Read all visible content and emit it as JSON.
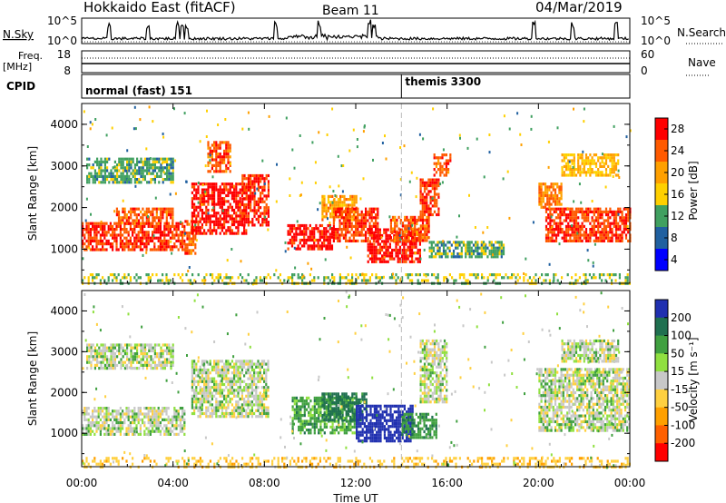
{
  "header": {
    "station": "Hokkaido East (fitACF)",
    "beam": "Beam 11",
    "date": "04/Mar/2019"
  },
  "nsky_panel": {
    "label": "N.Sky",
    "left_ticks": [
      "10^5",
      "10^0"
    ],
    "right_ticks": [
      "10^5",
      "10^0"
    ],
    "right_label": "N.Search"
  },
  "freq_panel": {
    "label": "Freq.",
    "unit": "[MHz]",
    "left_ticks": [
      "18",
      "8"
    ],
    "right_ticks": [
      "60",
      "0"
    ],
    "right_label": "Nave"
  },
  "cpid_panel": {
    "label": "CPID",
    "modes": [
      {
        "name": "normal (fast) 151",
        "start_hour": 0
      },
      {
        "name": "themis 3300",
        "start_hour": 14
      }
    ]
  },
  "axes": {
    "xlabel": "Time UT",
    "x_ticks": [
      "00:00",
      "04:00",
      "08:00",
      "12:00",
      "16:00",
      "20:00",
      "00:00"
    ],
    "x_range_hours": [
      0,
      24
    ],
    "ylabel": "Slant Range [km]",
    "y_ticks": [
      "4000",
      "3000",
      "2000",
      "1000"
    ],
    "y_range_km": [
      180,
      4500
    ]
  },
  "power_colorbar": {
    "label": "Power [dB]",
    "ticks": [
      "28",
      "24",
      "20",
      "16",
      "12",
      "8",
      "4"
    ],
    "colors": [
      "#ff0000",
      "#ff5a00",
      "#ffa000",
      "#ffd000",
      "#40a060",
      "#2060a0",
      "#0000ff"
    ]
  },
  "velocity_colorbar": {
    "label": "Velocity [m s⁻¹]",
    "ticks": [
      "200",
      "100",
      "50",
      "15",
      "-15",
      "-50",
      "-100",
      "-200"
    ],
    "colors": [
      "#2030b0",
      "#207050",
      "#40a040",
      "#90e040",
      "#c8c8c8",
      "#ffd040",
      "#ffa000",
      "#ff6000",
      "#ff0000"
    ]
  },
  "chart_data": {
    "type": "heatmap",
    "title": "Hokkaido East (fitACF)",
    "xlabel": "Time UT",
    "ylabel": "Slant Range [km]",
    "x_range_hours": [
      0,
      24
    ],
    "y_range_km": [
      180,
      4500
    ],
    "power_regions": [
      {
        "t0": 0.0,
        "t1": 4.5,
        "r0": 1000,
        "r1": 1650,
        "dB": 26
      },
      {
        "t0": 4.5,
        "t1": 5.0,
        "r0": 900,
        "r1": 1700,
        "dB": 24
      },
      {
        "t0": 4.8,
        "t1": 7.2,
        "r0": 1400,
        "r1": 2600,
        "dB": 28
      },
      {
        "t0": 7.0,
        "t1": 8.2,
        "r0": 1600,
        "r1": 2800,
        "dB": 26
      },
      {
        "t0": 5.5,
        "t1": 6.5,
        "r0": 2900,
        "r1": 3600,
        "dB": 24
      },
      {
        "t0": 0.2,
        "t1": 4.0,
        "r0": 2600,
        "r1": 3200,
        "dB": 12
      },
      {
        "t0": 1.5,
        "t1": 4.0,
        "r0": 1650,
        "r1": 2000,
        "dB": 24
      },
      {
        "t0": 9.0,
        "t1": 11.0,
        "r0": 1000,
        "r1": 1600,
        "dB": 28
      },
      {
        "t0": 10.5,
        "t1": 12.0,
        "r0": 1700,
        "r1": 2300,
        "dB": 20
      },
      {
        "t0": 11.0,
        "t1": 13.0,
        "r0": 1200,
        "r1": 2000,
        "dB": 26
      },
      {
        "t0": 12.5,
        "t1": 14.8,
        "r0": 700,
        "r1": 1500,
        "dB": 28
      },
      {
        "t0": 13.5,
        "t1": 15.2,
        "r0": 1200,
        "r1": 1800,
        "dB": 24
      },
      {
        "t0": 14.8,
        "t1": 15.6,
        "r0": 1800,
        "r1": 2700,
        "dB": 26
      },
      {
        "t0": 15.4,
        "t1": 16.1,
        "r0": 2800,
        "r1": 3300,
        "dB": 24
      },
      {
        "t0": 15.2,
        "t1": 18.5,
        "r0": 800,
        "r1": 1200,
        "dB": 12
      },
      {
        "t0": 20.3,
        "t1": 24.0,
        "r0": 1200,
        "r1": 2000,
        "dB": 26
      },
      {
        "t0": 20.0,
        "t1": 21.0,
        "r0": 2000,
        "r1": 2600,
        "dB": 22
      },
      {
        "t0": 21.0,
        "t1": 23.5,
        "r0": 2800,
        "r1": 3300,
        "dB": 18
      },
      {
        "t0": 0.0,
        "t1": 24.0,
        "r0": 200,
        "r1": 420,
        "dB": 14
      }
    ],
    "velocity_regions": [
      {
        "t0": 0.0,
        "t1": 4.5,
        "r0": 1000,
        "r1": 1650,
        "vel": 0
      },
      {
        "t0": 4.8,
        "t1": 8.2,
        "r0": 1400,
        "r1": 2800,
        "vel": 0
      },
      {
        "t0": 0.2,
        "t1": 4.0,
        "r0": 2600,
        "r1": 3200,
        "vel": 0
      },
      {
        "t0": 9.2,
        "t1": 12.0,
        "r0": 1000,
        "r1": 1900,
        "vel": 30
      },
      {
        "t0": 10.5,
        "t1": 12.5,
        "r0": 1300,
        "r1": 2000,
        "vel": 70
      },
      {
        "t0": 12.0,
        "t1": 14.5,
        "r0": 800,
        "r1": 1700,
        "vel": 150
      },
      {
        "t0": 14.0,
        "t1": 15.5,
        "r0": 900,
        "r1": 1500,
        "vel": 40
      },
      {
        "t0": 14.8,
        "t1": 16.0,
        "r0": 1800,
        "r1": 3300,
        "vel": 0
      },
      {
        "t0": 20.0,
        "t1": 24.0,
        "r0": 1100,
        "r1": 2600,
        "vel": 0
      },
      {
        "t0": 21.0,
        "t1": 23.5,
        "r0": 2800,
        "r1": 3300,
        "vel": 0
      },
      {
        "t0": 0.0,
        "t1": 24.0,
        "r0": 200,
        "r1": 420,
        "vel": -40
      }
    ],
    "nsky_spikes_hours": [
      1.2,
      2.9,
      4.2,
      4.4,
      4.6,
      8.5,
      10.4,
      12.6,
      12.8,
      19.8,
      21.5,
      23.4
    ]
  }
}
